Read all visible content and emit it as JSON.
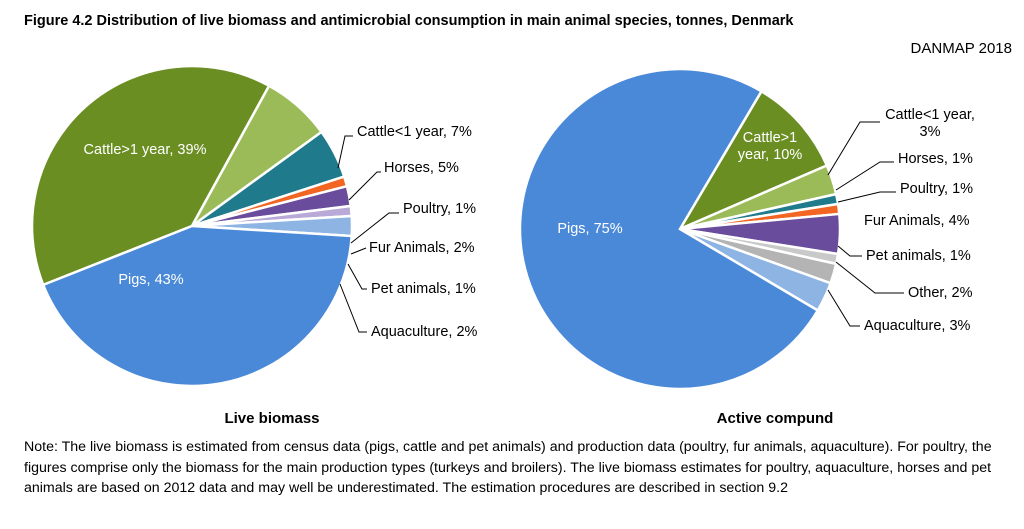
{
  "figure": {
    "title": "Figure 4.2 Distribution of live biomass and antimicrobial consumption in main animal species, tonnes, Denmark",
    "source": "DANMAP 2018",
    "note": "Note: The live biomass is estimated from census data (pigs, cattle and pet animals) and production data (poultry, fur animals, aquaculture). For poultry, the figures comprise only the biomass for the main production types (turkeys and broilers). The live biomass estimates for poultry, aquaculture, horses and pet animals are based on 2012 data and may well be underestimated. The estimation procedures are described in section 9.2"
  },
  "chart_data": [
    {
      "type": "pie",
      "title": "Live biomass",
      "slices": [
        {
          "label": "Cattle>1 year, 39%",
          "value": 39,
          "color": "#6b8e23",
          "lines": [
            "Cattle>1 year, 39%"
          ]
        },
        {
          "label": "Cattle<1 year, 7%",
          "value": 7,
          "color": "#9bbb59",
          "lines": [
            "Cattle<1 year, 7%"
          ]
        },
        {
          "label": "Horses, 5%",
          "value": 5,
          "color": "#1f7a8c",
          "lines": [
            "Horses, 5%"
          ]
        },
        {
          "label": "Poultry, 1%",
          "value": 1,
          "color": "#f26522",
          "lines": [
            "Poultry, 1%"
          ]
        },
        {
          "label": "Fur Animals, 2%",
          "value": 2,
          "color": "#6a4c9c",
          "lines": [
            "Fur Animals, 2%"
          ]
        },
        {
          "label": "Pet animals, 1%",
          "value": 1,
          "color": "#b8a9d6",
          "lines": [
            "Pet animals, 1%"
          ]
        },
        {
          "label": "Aquaculture, 2%",
          "value": 2,
          "color": "#8db4e2",
          "lines": [
            "Aquaculture, 2%"
          ]
        },
        {
          "label": "Pigs, 43%",
          "value": 43,
          "color": "#4a89d8",
          "lines": [
            "Pigs, 43%"
          ]
        }
      ]
    },
    {
      "type": "pie",
      "title": "Active compund",
      "slices": [
        {
          "label": "Cattle>1 year, 10%",
          "value": 10,
          "color": "#6b8e23",
          "lines": [
            "Cattle>1",
            "year, 10%"
          ]
        },
        {
          "label": "Cattle<1 year, 3%",
          "value": 3,
          "color": "#9bbb59",
          "lines": [
            "Cattle<1 year,",
            "3%"
          ]
        },
        {
          "label": "Horses, 1%",
          "value": 1,
          "color": "#1f7a8c",
          "lines": [
            "Horses, 1%"
          ]
        },
        {
          "label": "Poultry, 1%",
          "value": 1,
          "color": "#f26522",
          "lines": [
            "Poultry, 1%"
          ]
        },
        {
          "label": "Fur Animals, 4%",
          "value": 4,
          "color": "#6a4c9c",
          "lines": [
            "Fur Animals, 4%"
          ]
        },
        {
          "label": "Pet animals, 1%",
          "value": 1,
          "color": "#c9c9c9",
          "lines": [
            "Pet animals, 1%"
          ]
        },
        {
          "label": "Other, 2%",
          "value": 2,
          "color": "#b4b4b4",
          "lines": [
            "Other, 2%"
          ]
        },
        {
          "label": "Aquaculture, 3%",
          "value": 3,
          "color": "#8db4e2",
          "lines": [
            "Aquaculture, 3%"
          ]
        },
        {
          "label": "Pigs, 75%",
          "value": 75,
          "color": "#4a89d8",
          "lines": [
            "Pigs, 75%"
          ]
        }
      ]
    }
  ]
}
